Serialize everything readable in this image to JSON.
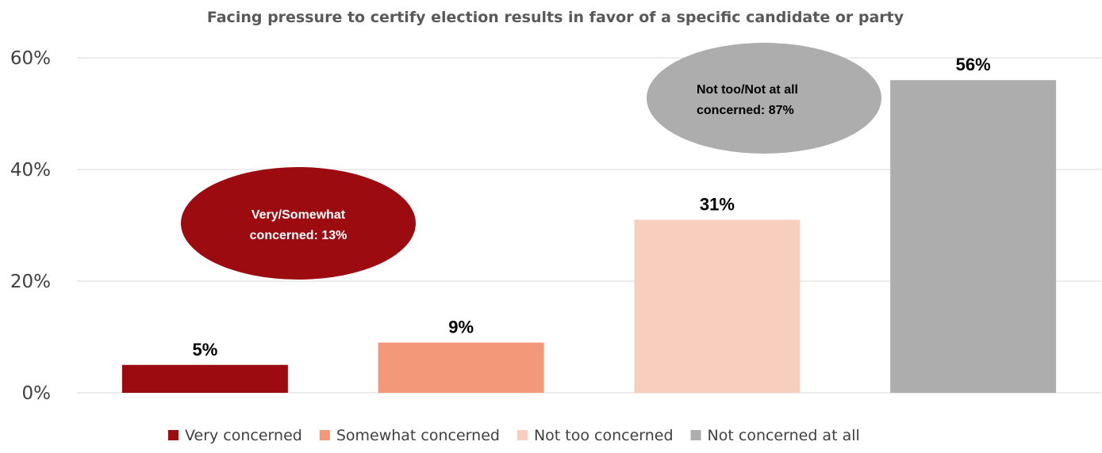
{
  "chart_data": {
    "type": "bar",
    "title": "Facing pressure to certify election results in favor of a specific candidate or party",
    "categories": [
      "Very concerned",
      "Somewhat concerned",
      "Not too concerned",
      "Not concerned at all"
    ],
    "values": [
      5,
      9,
      31,
      56
    ],
    "data_labels": [
      "5%",
      "9%",
      "31%",
      "56%"
    ],
    "colors": [
      "#9c0b10",
      "#f4987a",
      "#f8cfbf",
      "#adadad"
    ],
    "ylim": [
      0,
      60
    ],
    "yticks": [
      0,
      20,
      40,
      60
    ],
    "ytick_labels": [
      "0%",
      "20%",
      "40%",
      "60%"
    ],
    "grid": true,
    "legend": {
      "placement": "bottom",
      "entries": [
        "Very concerned",
        "Somewhat concerned",
        "Not too concerned",
        "Not concerned at all"
      ]
    },
    "annotations": [
      {
        "line1": "Very/Somewhat",
        "line2": "concerned: 13%",
        "color": "#9c0b10"
      },
      {
        "line1": "Not too/Not at all",
        "line2": "concerned: 87%",
        "color": "#adadad"
      }
    ]
  }
}
